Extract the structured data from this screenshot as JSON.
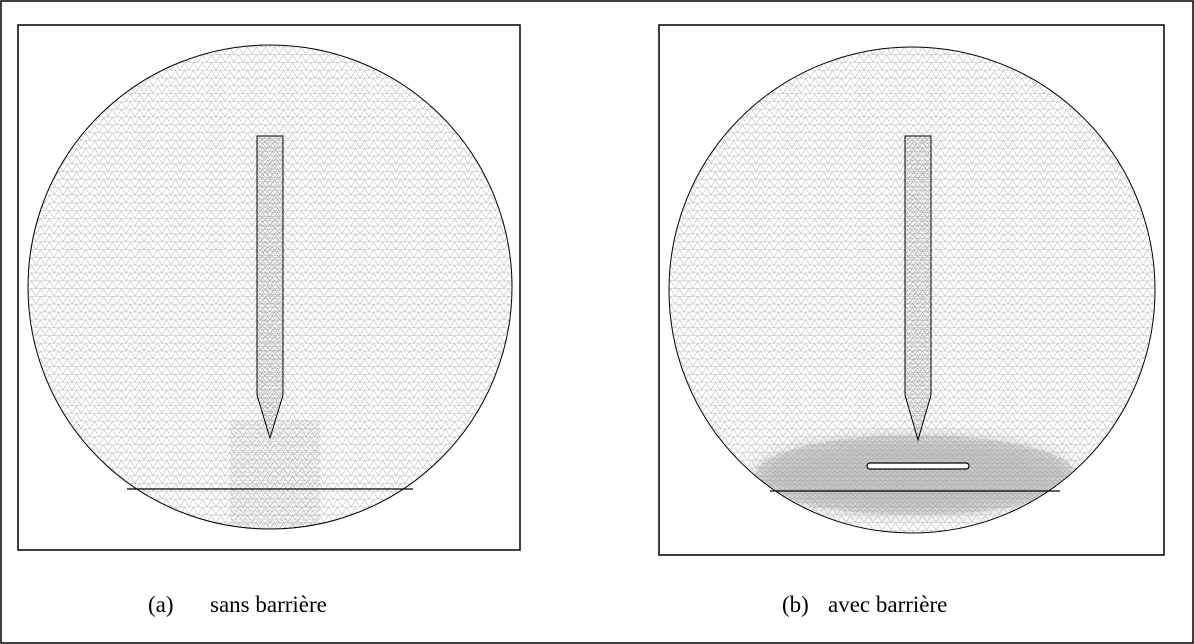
{
  "figures": [
    {
      "tag": "(a)",
      "caption": "sans barrière"
    },
    {
      "tag": "(b)",
      "caption": "avec barrière"
    }
  ]
}
